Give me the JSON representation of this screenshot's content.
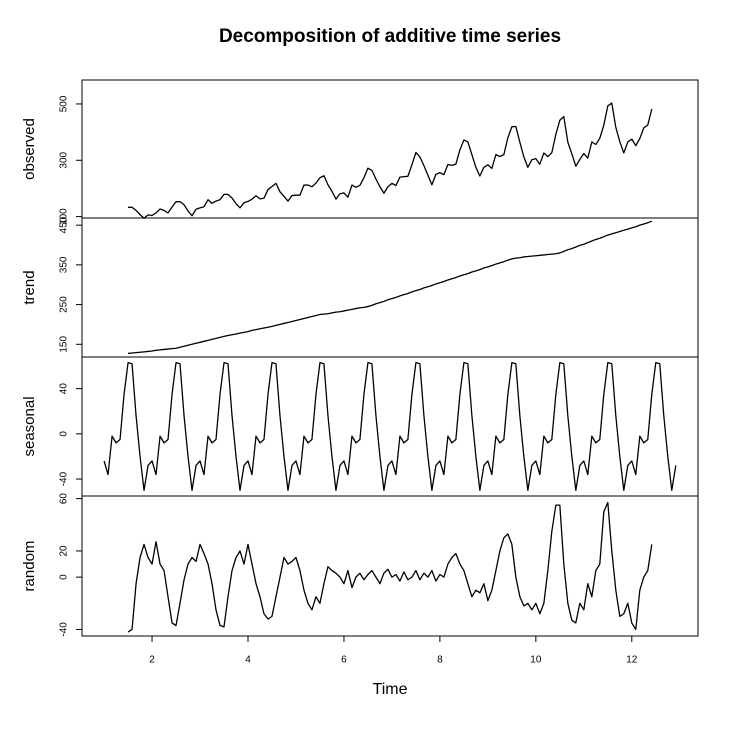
{
  "chart_data": [
    {
      "type": "line",
      "title": "Decomposition of additive time series",
      "ylabel": "observed",
      "color": "#000000",
      "xlim": [
        0.54,
        13.38
      ],
      "ylim": [
        95,
        585
      ],
      "yticks": [
        100,
        300,
        500
      ],
      "x": [
        1.5,
        1.583,
        1.667,
        1.75,
        1.833,
        1.917,
        2,
        2.083,
        2.167,
        2.25,
        2.333,
        2.417,
        2.5,
        2.583,
        2.667,
        2.75,
        2.833,
        2.917,
        3,
        3.083,
        3.167,
        3.25,
        3.333,
        3.417,
        3.5,
        3.583,
        3.667,
        3.75,
        3.833,
        3.917,
        4,
        4.083,
        4.167,
        4.25,
        4.333,
        4.417,
        4.5,
        4.583,
        4.667,
        4.75,
        4.833,
        4.917,
        5,
        5.083,
        5.167,
        5.25,
        5.333,
        5.417,
        5.5,
        5.583,
        5.667,
        5.75,
        5.833,
        5.917,
        6,
        6.083,
        6.167,
        6.25,
        6.333,
        6.417,
        6.5,
        6.583,
        6.667,
        6.75,
        6.833,
        6.917,
        7,
        7.083,
        7.167,
        7.25,
        7.333,
        7.417,
        7.5,
        7.583,
        7.667,
        7.75,
        7.833,
        7.917,
        8,
        8.083,
        8.167,
        8.25,
        8.333,
        8.417,
        8.5,
        8.583,
        8.667,
        8.75,
        8.833,
        8.917,
        9,
        9.083,
        9.167,
        9.25,
        9.333,
        9.417,
        9.5,
        9.583,
        9.667,
        9.75,
        9.833,
        9.917,
        10,
        10.083,
        10.167,
        10.25,
        10.333,
        10.417,
        10.5,
        10.583,
        10.667,
        10.75,
        10.833,
        10.917,
        11,
        11.083,
        11.167,
        11.25,
        11.333,
        11.417,
        11.5,
        11.583,
        11.667,
        11.75,
        11.833,
        11.917,
        12,
        12.083,
        12.167,
        12.25,
        12.333,
        12.417
      ],
      "values": [
        133,
        133,
        122,
        107,
        94,
        106,
        104,
        113,
        127,
        122,
        113,
        134,
        153,
        153,
        142,
        120,
        103,
        126,
        131,
        135,
        160,
        147,
        155,
        160,
        179,
        179,
        166,
        146,
        131,
        149,
        154,
        162,
        174,
        163,
        165,
        196,
        207,
        218,
        188,
        172,
        155,
        175,
        176,
        176,
        212,
        212,
        206,
        219,
        238,
        245,
        213,
        190,
        162,
        181,
        184,
        169,
        212,
        204,
        211,
        238,
        272,
        264,
        233,
        206,
        183,
        206,
        218,
        210,
        240,
        242,
        243,
        284,
        328,
        312,
        281,
        247,
        213,
        250,
        256,
        249,
        285,
        282,
        286,
        337,
        372,
        365,
        320,
        275,
        244,
        275,
        284,
        271,
        320,
        313,
        320,
        380,
        419,
        420,
        364,
        312,
        275,
        302,
        306,
        286,
        326,
        313,
        327,
        392,
        442,
        455,
        364,
        323,
        279,
        303,
        324,
        308,
        365,
        356,
        378,
        425,
        493,
        503,
        417,
        366,
        326,
        365,
        375,
        352,
        377,
        415,
        425,
        482
      ]
    },
    {
      "type": "line",
      "ylabel": "trend",
      "color": "#000000",
      "xlim": [
        0.54,
        13.38
      ],
      "ylim": [
        118,
        468
      ],
      "yticks": [
        150,
        250,
        350,
        450
      ],
      "x": [
        1.5,
        1.583,
        1.667,
        1.75,
        1.833,
        1.917,
        2,
        2.083,
        2.167,
        2.25,
        2.333,
        2.417,
        2.5,
        2.583,
        2.667,
        2.75,
        2.833,
        2.917,
        3,
        3.083,
        3.167,
        3.25,
        3.333,
        3.417,
        3.5,
        3.583,
        3.667,
        3.75,
        3.833,
        3.917,
        4,
        4.083,
        4.167,
        4.25,
        4.333,
        4.417,
        4.5,
        4.583,
        4.667,
        4.75,
        4.833,
        4.917,
        5,
        5.083,
        5.167,
        5.25,
        5.333,
        5.417,
        5.5,
        5.583,
        5.667,
        5.75,
        5.833,
        5.917,
        6,
        6.083,
        6.167,
        6.25,
        6.333,
        6.417,
        6.5,
        6.583,
        6.667,
        6.75,
        6.833,
        6.917,
        7,
        7.083,
        7.167,
        7.25,
        7.333,
        7.417,
        7.5,
        7.583,
        7.667,
        7.75,
        7.833,
        7.917,
        8,
        8.083,
        8.167,
        8.25,
        8.333,
        8.417,
        8.5,
        8.583,
        8.667,
        8.75,
        8.833,
        8.917,
        9,
        9.083,
        9.167,
        9.25,
        9.333,
        9.417,
        9.5,
        9.583,
        9.667,
        9.75,
        9.833,
        9.917,
        10,
        10.083,
        10.167,
        10.25,
        10.333,
        10.417,
        10.5,
        10.583,
        10.667,
        10.75,
        10.833,
        10.917,
        11,
        11.083,
        11.167,
        11.25,
        11.333,
        11.417,
        11.5,
        11.583,
        11.667,
        11.75,
        11.833,
        11.917,
        12,
        12.083,
        12.167,
        12.25,
        12.333,
        12.417
      ],
      "values": [
        127,
        128,
        129,
        130,
        131,
        132,
        133,
        135,
        136,
        137,
        138,
        139,
        140,
        142.5,
        145,
        147.5,
        150,
        152.5,
        155,
        157.5,
        160,
        162.5,
        165,
        167.5,
        170,
        172,
        174,
        176,
        178,
        180,
        182,
        185,
        187,
        189,
        191,
        193,
        195,
        197.5,
        200,
        202.5,
        205,
        207.5,
        210,
        212.5,
        215,
        217.5,
        220,
        222.5,
        225,
        226,
        227,
        229,
        231,
        232,
        234,
        236,
        238,
        240,
        242,
        243,
        245,
        248,
        252,
        255,
        258,
        262,
        265,
        268,
        272,
        275,
        278,
        282,
        285,
        288,
        292,
        295,
        298,
        302,
        305,
        308,
        312,
        315,
        318,
        322,
        325,
        328,
        332,
        335,
        338,
        342,
        345,
        348,
        352,
        355,
        358,
        362,
        365,
        367,
        368,
        370,
        371,
        372,
        373,
        374,
        375,
        376,
        377,
        378,
        380,
        384,
        388,
        391,
        395,
        399,
        402,
        406,
        410,
        414,
        417,
        421,
        425,
        428,
        431,
        434,
        437,
        440,
        443,
        446,
        450,
        453,
        456,
        460
      ]
    },
    {
      "type": "line",
      "ylabel": "seasonal",
      "color": "#000000",
      "xlim": [
        0.54,
        13.38
      ],
      "ylim": [
        -55,
        68
      ],
      "yticks": [
        -40,
        0,
        40
      ],
      "x": [
        1,
        1.083,
        1.167,
        1.25,
        1.333,
        1.417,
        1.5,
        1.583,
        1.667,
        1.75,
        1.833,
        1.917,
        2,
        2.083,
        2.167,
        2.25,
        2.333,
        2.417,
        2.5,
        2.583,
        2.667,
        2.75,
        2.833,
        2.917,
        3,
        3.083,
        3.167,
        3.25,
        3.333,
        3.417,
        3.5,
        3.583,
        3.667,
        3.75,
        3.833,
        3.917,
        4,
        4.083,
        4.167,
        4.25,
        4.333,
        4.417,
        4.5,
        4.583,
        4.667,
        4.75,
        4.833,
        4.917,
        5,
        5.083,
        5.167,
        5.25,
        5.333,
        5.417,
        5.5,
        5.583,
        5.667,
        5.75,
        5.833,
        5.917,
        6,
        6.083,
        6.167,
        6.25,
        6.333,
        6.417,
        6.5,
        6.583,
        6.667,
        6.75,
        6.833,
        6.917,
        7,
        7.083,
        7.167,
        7.25,
        7.333,
        7.417,
        7.5,
        7.583,
        7.667,
        7.75,
        7.833,
        7.917,
        8,
        8.083,
        8.167,
        8.25,
        8.333,
        8.417,
        8.5,
        8.583,
        8.667,
        8.75,
        8.833,
        8.917,
        9,
        9.083,
        9.167,
        9.25,
        9.333,
        9.417,
        9.5,
        9.583,
        9.667,
        9.75,
        9.833,
        9.917,
        10,
        10.083,
        10.167,
        10.25,
        10.333,
        10.417,
        10.5,
        10.583,
        10.667,
        10.75,
        10.833,
        10.917,
        11,
        11.083,
        11.167,
        11.25,
        11.333,
        11.417,
        11.5,
        11.583,
        11.667,
        11.75,
        11.833,
        11.917,
        12,
        12.083,
        12.167,
        12.25,
        12.333,
        12.417,
        12.5,
        12.583,
        12.667,
        12.75,
        12.833,
        12.917
      ],
      "values": [
        -24,
        -36,
        -2,
        -8,
        -5,
        35,
        63,
        62,
        16,
        -20,
        -50,
        -28,
        -24,
        -36,
        -2,
        -8,
        -5,
        35,
        63,
        62,
        16,
        -20,
        -50,
        -28,
        -24,
        -36,
        -2,
        -8,
        -5,
        35,
        63,
        62,
        16,
        -20,
        -50,
        -28,
        -24,
        -36,
        -2,
        -8,
        -5,
        35,
        63,
        62,
        16,
        -20,
        -50,
        -28,
        -24,
        -36,
        -2,
        -8,
        -5,
        35,
        63,
        62,
        16,
        -20,
        -50,
        -28,
        -24,
        -36,
        -2,
        -8,
        -5,
        35,
        63,
        62,
        16,
        -20,
        -50,
        -28,
        -24,
        -36,
        -2,
        -8,
        -5,
        35,
        63,
        62,
        16,
        -20,
        -50,
        -28,
        -24,
        -36,
        -2,
        -8,
        -5,
        35,
        63,
        62,
        16,
        -20,
        -50,
        -28,
        -24,
        -36,
        -2,
        -8,
        -5,
        35,
        63,
        62,
        16,
        -20,
        -50,
        -28,
        -24,
        -36,
        -2,
        -8,
        -5,
        35,
        63,
        62,
        16,
        -20,
        -50,
        -28,
        -24,
        -36,
        -2,
        -8,
        -5,
        35,
        63,
        62,
        16,
        -20,
        -50,
        -28,
        -24,
        -36,
        -2,
        -8,
        -5,
        35,
        63,
        62,
        16,
        -20,
        -50,
        -28
      ]
    },
    {
      "type": "line",
      "ylabel": "random",
      "xlabel": "Time",
      "color": "#000000",
      "xlim": [
        0.54,
        13.38
      ],
      "ylim": [
        -45,
        62
      ],
      "yticks": [
        -40,
        0,
        20,
        60
      ],
      "xticks": [
        2,
        4,
        6,
        8,
        10,
        12
      ],
      "x": [
        1.5,
        1.583,
        1.667,
        1.75,
        1.833,
        1.917,
        2,
        2.083,
        2.167,
        2.25,
        2.333,
        2.417,
        2.5,
        2.583,
        2.667,
        2.75,
        2.833,
        2.917,
        3,
        3.083,
        3.167,
        3.25,
        3.333,
        3.417,
        3.5,
        3.583,
        3.667,
        3.75,
        3.833,
        3.917,
        4,
        4.083,
        4.167,
        4.25,
        4.333,
        4.417,
        4.5,
        4.583,
        4.667,
        4.75,
        4.833,
        4.917,
        5,
        5.083,
        5.167,
        5.25,
        5.333,
        5.417,
        5.5,
        5.583,
        5.667,
        5.75,
        5.833,
        5.917,
        6,
        6.083,
        6.167,
        6.25,
        6.333,
        6.417,
        6.5,
        6.583,
        6.667,
        6.75,
        6.833,
        6.917,
        7,
        7.083,
        7.167,
        7.25,
        7.333,
        7.417,
        7.5,
        7.583,
        7.667,
        7.75,
        7.833,
        7.917,
        8,
        8.083,
        8.167,
        8.25,
        8.333,
        8.417,
        8.5,
        8.583,
        8.667,
        8.75,
        8.833,
        8.917,
        9,
        9.083,
        9.167,
        9.25,
        9.333,
        9.417,
        9.5,
        9.583,
        9.667,
        9.75,
        9.833,
        9.917,
        10,
        10.083,
        10.167,
        10.25,
        10.333,
        10.417,
        10.5,
        10.583,
        10.667,
        10.75,
        10.833,
        10.917,
        11,
        11.083,
        11.167,
        11.25,
        11.333,
        11.417,
        11.5,
        11.583,
        11.667,
        11.75,
        11.833,
        11.917,
        12,
        12.083,
        12.167,
        12.25,
        12.333,
        12.417
      ],
      "values": [
        -42,
        -40,
        -5,
        15,
        25,
        15,
        10,
        27,
        10,
        5,
        -15,
        -35,
        -37,
        -20,
        -2,
        10,
        15,
        12,
        25,
        18,
        10,
        -5,
        -25,
        -37,
        -38,
        -15,
        5,
        15,
        20,
        10,
        25,
        10,
        -5,
        -15,
        -28,
        -32,
        -30,
        -15,
        0,
        15,
        10,
        12,
        15,
        5,
        -10,
        -20,
        -25,
        -15,
        -20,
        -5,
        8,
        5,
        3,
        0,
        -5,
        5,
        -8,
        0,
        3,
        -2,
        2,
        5,
        0,
        -5,
        3,
        6,
        0,
        2,
        -3,
        4,
        -2,
        0,
        5,
        -2,
        3,
        0,
        5,
        -3,
        2,
        0,
        10,
        15,
        18,
        10,
        5,
        -5,
        -15,
        -10,
        -12,
        -5,
        -18,
        -10,
        5,
        20,
        30,
        33,
        25,
        0,
        -15,
        -22,
        -20,
        -25,
        -20,
        -28,
        -20,
        5,
        35,
        55,
        55,
        10,
        -20,
        -33,
        -35,
        -20,
        -25,
        -5,
        -15,
        5,
        10,
        50,
        57,
        20,
        -10,
        -30,
        -28,
        -20,
        -35,
        -40,
        -10,
        0,
        5,
        25
      ]
    }
  ]
}
